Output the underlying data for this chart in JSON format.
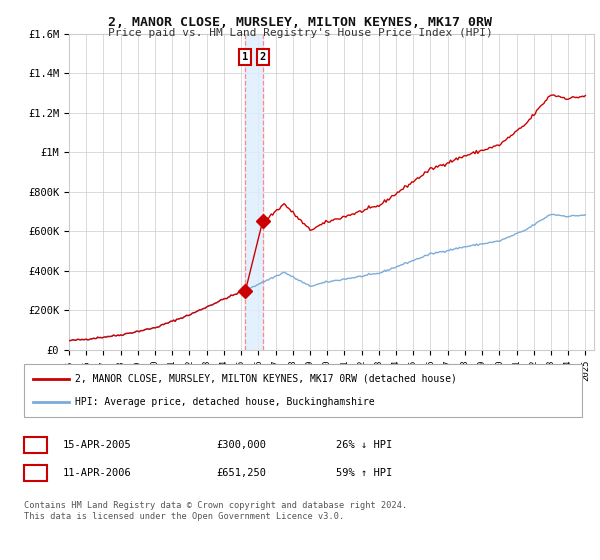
{
  "title": "2, MANOR CLOSE, MURSLEY, MILTON KEYNES, MK17 0RW",
  "subtitle": "Price paid vs. HM Land Registry's House Price Index (HPI)",
  "red_label": "2, MANOR CLOSE, MURSLEY, MILTON KEYNES, MK17 0RW (detached house)",
  "blue_label": "HPI: Average price, detached house, Buckinghamshire",
  "transaction1_date": "15-APR-2005",
  "transaction1_price": 300000,
  "transaction1_pct": "26% ↓ HPI",
  "transaction2_date": "11-APR-2006",
  "transaction2_price": 651250,
  "transaction2_pct": "59% ↑ HPI",
  "footer": "Contains HM Land Registry data © Crown copyright and database right 2024.\nThis data is licensed under the Open Government Licence v3.0.",
  "ylim": [
    0,
    1600000
  ],
  "yticks": [
    0,
    200000,
    400000,
    600000,
    800000,
    1000000,
    1200000,
    1400000,
    1600000
  ],
  "ylabel_texts": [
    "£0",
    "£200K",
    "£400K",
    "£600K",
    "£800K",
    "£1M",
    "£1.2M",
    "£1.4M",
    "£1.6M"
  ],
  "transaction1_year": 2005.29,
  "transaction2_year": 2006.28,
  "price1": 300000,
  "price2": 651250,
  "background_color": "#ffffff",
  "grid_color": "#cccccc",
  "red_color": "#cc0000",
  "blue_color": "#7aaddc",
  "vline_color": "#ff8888",
  "span_color": "#ddeeff"
}
